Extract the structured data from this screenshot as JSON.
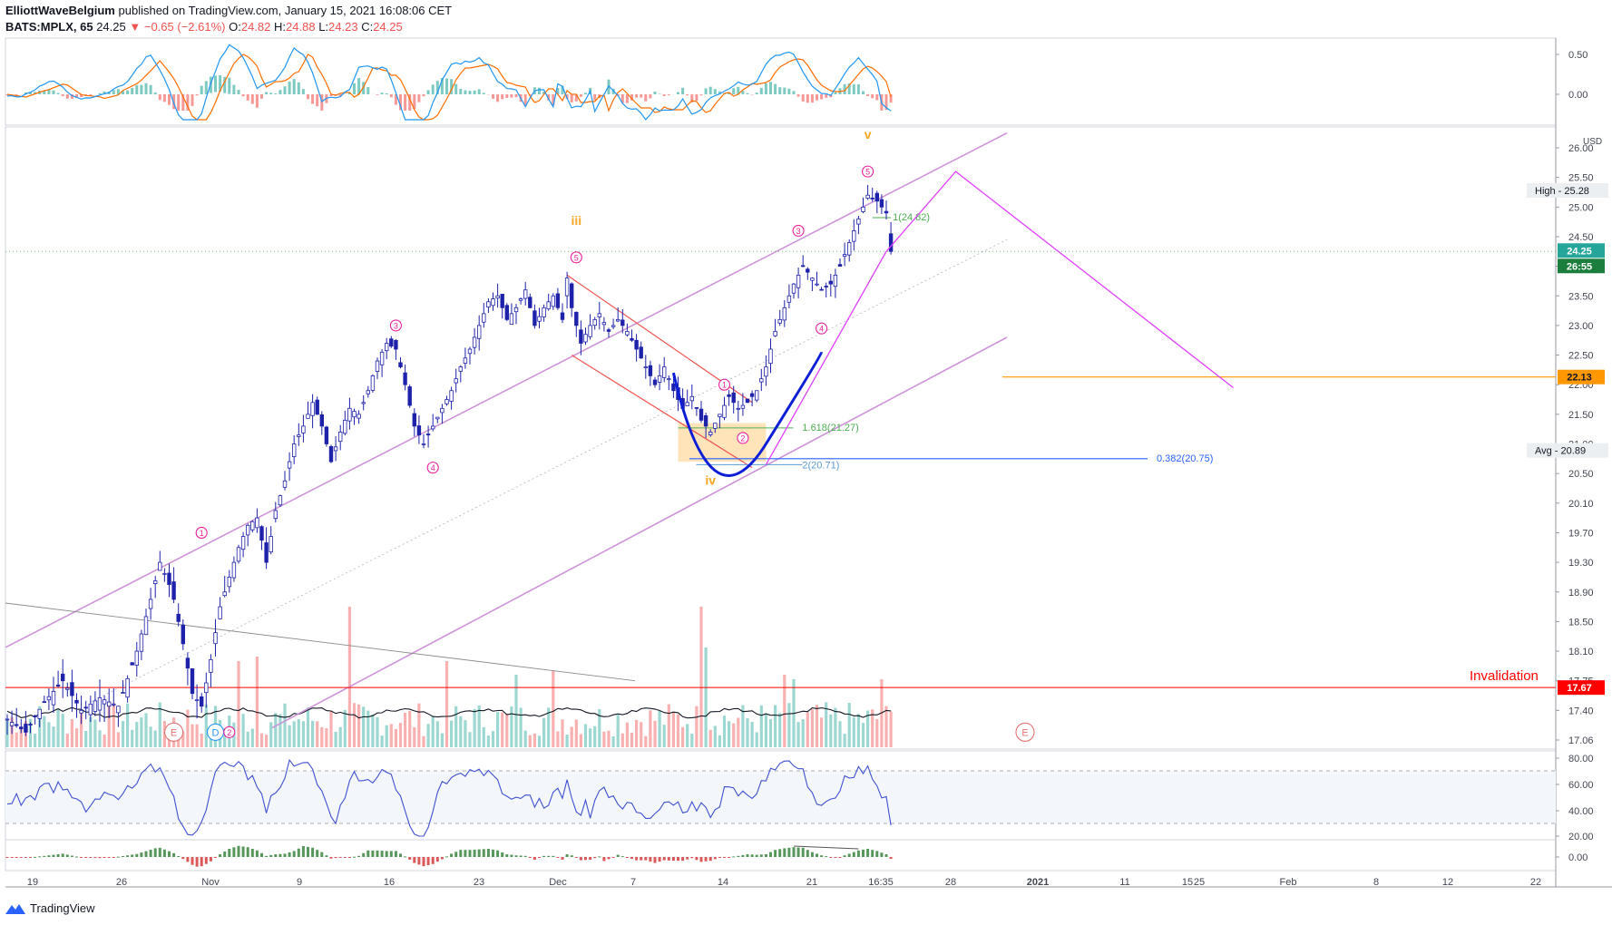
{
  "header": {
    "publisher": "ElliottWaveBelgium",
    "published_text": "published on TradingView.com, January 15, 2021 16:08:06 CET",
    "symbol": "BATS:MPLX, 65",
    "last": "24.25",
    "change_arrow": "▼",
    "change": "−0.65 (−2.61%)",
    "o_label": "O:",
    "o_value": "24.82",
    "h_label": "H:",
    "h_value": "24.88",
    "l_label": "L:",
    "l_value": "24.23",
    "c_label": "C:",
    "c_value": "24.25"
  },
  "brand": {
    "name": "TradingView",
    "icon": "tradingview-logo-icon"
  },
  "colors": {
    "up": "#26a69a",
    "down": "#ef5350",
    "candle": "#1e22aa",
    "macd_line": "#2196f3",
    "signal_line": "#ff6d00",
    "rsi": "#3f51d0",
    "channel": "#ce93d8",
    "wave_label": "#e91e9c",
    "wave_major": "#f5a623",
    "projection": "#e040fb",
    "invalidation": "#ff0000",
    "level_2213": "#ff9800",
    "cup": "#0d1fd6",
    "fib_green": "#4caf50",
    "fib_blue": "#2962ff"
  },
  "chart_data": {
    "type": "candlestick",
    "symbol": "BATS:MPLX",
    "timeframe": "65",
    "currency": "USD",
    "x_ticks": [
      "19",
      "26",
      "Nov",
      "9",
      "16",
      "23",
      "Dec",
      "7",
      "14",
      "21",
      "16:35",
      "28",
      "2021",
      "11",
      "15",
      "25",
      "Feb",
      "8",
      "12",
      "22"
    ],
    "price_ticks": [
      "26.00",
      "25.50",
      "25.00",
      "24.50",
      "24.00",
      "23.50",
      "23.00",
      "22.50",
      "22.00",
      "21.50",
      "21.00",
      "20.50",
      "20.10",
      "19.70",
      "19.30",
      "18.90",
      "18.50",
      "18.10",
      "17.75",
      "17.40",
      "17.06"
    ],
    "price_range": [
      16.95,
      26.45
    ],
    "macd_ticks": [
      "0.50",
      "0.00"
    ],
    "rsi_ticks": [
      "80.00",
      "60.00",
      "40.00",
      "20.00",
      "0.00"
    ],
    "price_path": [
      [
        0,
        17.3
      ],
      [
        4,
        17.15
      ],
      [
        8,
        17.5
      ],
      [
        12,
        17.75
      ],
      [
        16,
        17.4
      ],
      [
        20,
        17.55
      ],
      [
        24,
        17.45
      ],
      [
        28,
        18.1
      ],
      [
        31,
        18.8
      ],
      [
        33,
        19.3
      ],
      [
        35,
        19.0
      ],
      [
        36,
        18.8
      ],
      [
        38,
        18.2
      ],
      [
        40,
        17.6
      ],
      [
        42,
        17.45
      ],
      [
        44,
        18.0
      ],
      [
        46,
        18.7
      ],
      [
        48,
        19.1
      ],
      [
        50,
        19.5
      ],
      [
        52,
        19.8
      ],
      [
        54,
        19.9
      ],
      [
        56,
        19.3
      ],
      [
        58,
        20.0
      ],
      [
        60,
        20.4
      ],
      [
        62,
        21.0
      ],
      [
        64,
        21.3
      ],
      [
        66,
        21.7
      ],
      [
        68,
        21.3
      ],
      [
        70,
        20.7
      ],
      [
        72,
        21.2
      ],
      [
        74,
        21.6
      ],
      [
        76,
        21.5
      ],
      [
        78,
        21.9
      ],
      [
        80,
        22.4
      ],
      [
        82,
        22.7
      ],
      [
        84,
        22.6
      ],
      [
        86,
        22.0
      ],
      [
        88,
        21.3
      ],
      [
        90,
        21.0
      ],
      [
        92,
        21.3
      ],
      [
        94,
        21.6
      ],
      [
        96,
        21.9
      ],
      [
        98,
        22.3
      ],
      [
        100,
        22.6
      ],
      [
        102,
        23.0
      ],
      [
        104,
        23.4
      ],
      [
        106,
        23.5
      ],
      [
        108,
        23.1
      ],
      [
        110,
        23.3
      ],
      [
        112,
        23.6
      ],
      [
        114,
        23.0
      ],
      [
        116,
        23.3
      ],
      [
        118,
        23.5
      ],
      [
        120,
        23.1
      ],
      [
        121,
        23.8
      ],
      [
        122,
        23.3
      ],
      [
        124,
        22.7
      ],
      [
        126,
        23.0
      ],
      [
        128,
        23.2
      ],
      [
        130,
        22.9
      ],
      [
        132,
        23.1
      ],
      [
        134,
        22.9
      ],
      [
        136,
        22.6
      ],
      [
        138,
        22.3
      ],
      [
        140,
        22.0
      ],
      [
        142,
        22.3
      ],
      [
        144,
        21.9
      ],
      [
        146,
        21.6
      ],
      [
        148,
        21.8
      ],
      [
        150,
        21.4
      ],
      [
        152,
        21.2
      ],
      [
        154,
        21.5
      ],
      [
        156,
        21.8
      ],
      [
        158,
        21.6
      ],
      [
        160,
        21.7
      ],
      [
        162,
        21.9
      ],
      [
        164,
        22.3
      ],
      [
        166,
        22.9
      ],
      [
        168,
        23.3
      ],
      [
        170,
        23.7
      ],
      [
        172,
        24.0
      ],
      [
        174,
        23.8
      ],
      [
        176,
        23.6
      ],
      [
        178,
        23.7
      ],
      [
        180,
        24.0
      ],
      [
        182,
        24.4
      ],
      [
        184,
        24.8
      ],
      [
        186,
        25.2
      ],
      [
        188,
        25.1
      ],
      [
        190,
        24.9
      ],
      [
        191,
        24.25
      ]
    ],
    "price_n": 191,
    "volume": {
      "baseline_price_axis": 17.06,
      "spikes": [
        {
          "i": 74,
          "h": 155,
          "up": false
        },
        {
          "i": 95,
          "h": 95,
          "up": false
        },
        {
          "i": 110,
          "h": 80,
          "up": true
        },
        {
          "i": 150,
          "h": 155,
          "up": false
        },
        {
          "i": 151,
          "h": 110,
          "up": true
        },
        {
          "i": 168,
          "h": 80,
          "up": false
        },
        {
          "i": 170,
          "h": 75,
          "up": true
        },
        {
          "i": 189,
          "h": 75,
          "up": false
        },
        {
          "i": 54,
          "h": 100,
          "up": false
        },
        {
          "i": 50,
          "h": 95,
          "up": false
        },
        {
          "i": 118,
          "h": 85,
          "up": false
        }
      ]
    },
    "wave_labels": [
      {
        "text": "E",
        "i": 36,
        "price": 17.15,
        "style": "circle-red"
      },
      {
        "text": "D",
        "i": 45,
        "price": 17.15,
        "style": "circle-blue"
      },
      {
        "text": "2",
        "i": 48,
        "price": 17.15,
        "style": "circle"
      },
      {
        "text": "1",
        "i": 42,
        "price": 19.7,
        "style": "circle"
      },
      {
        "text": "3",
        "i": 84,
        "price": 23.0,
        "style": "circle"
      },
      {
        "text": "4",
        "i": 92,
        "price": 20.6,
        "style": "circle"
      },
      {
        "text": "5",
        "i": 123,
        "price": 24.15,
        "style": "circle"
      },
      {
        "text": "iii",
        "i": 123,
        "price": 24.7,
        "style": "major"
      },
      {
        "text": "1",
        "i": 155,
        "price": 22.0,
        "style": "circle"
      },
      {
        "text": "2",
        "i": 159,
        "price": 21.1,
        "style": "circle"
      },
      {
        "text": "iv",
        "i": 152,
        "price": 20.35,
        "style": "major"
      },
      {
        "text": "3",
        "i": 171,
        "price": 24.6,
        "style": "circle"
      },
      {
        "text": "4",
        "i": 176,
        "price": 22.95,
        "style": "circle"
      },
      {
        "text": "5",
        "i": 186,
        "price": 25.6,
        "style": "circle"
      },
      {
        "text": "v",
        "i": 186,
        "price": 26.15,
        "style": "major"
      },
      {
        "text": "E",
        "i": 220,
        "price": 17.15,
        "style": "circle-red"
      }
    ],
    "levels": [
      {
        "name": "invalidation",
        "price": 17.67,
        "label": "Invalidation",
        "badge": "17.67"
      },
      {
        "name": "level",
        "price": 22.13,
        "badge": "22.13"
      },
      {
        "name": "last",
        "price": 24.25,
        "badge": "24.25",
        "countdown": "26:55"
      }
    ],
    "fibs": [
      {
        "text": "1(24.82)",
        "price": 24.82
      },
      {
        "text": "1.618(21.27)",
        "price": 21.27
      },
      {
        "text": "2(20.71)",
        "price": 20.71
      },
      {
        "text": "0.382(20.75)",
        "price": 20.75
      }
    ],
    "stats": [
      {
        "label": "High",
        "value": "25.28",
        "price": 25.28
      },
      {
        "label": "Avg",
        "value": "20.89",
        "price": 20.89
      }
    ],
    "annotations": {
      "projection_path": [
        [
          190,
          24.25
        ],
        [
          205,
          25.6
        ],
        [
          265,
          21.95
        ]
      ],
      "zone_price_range": [
        20.7,
        21.35
      ]
    }
  }
}
